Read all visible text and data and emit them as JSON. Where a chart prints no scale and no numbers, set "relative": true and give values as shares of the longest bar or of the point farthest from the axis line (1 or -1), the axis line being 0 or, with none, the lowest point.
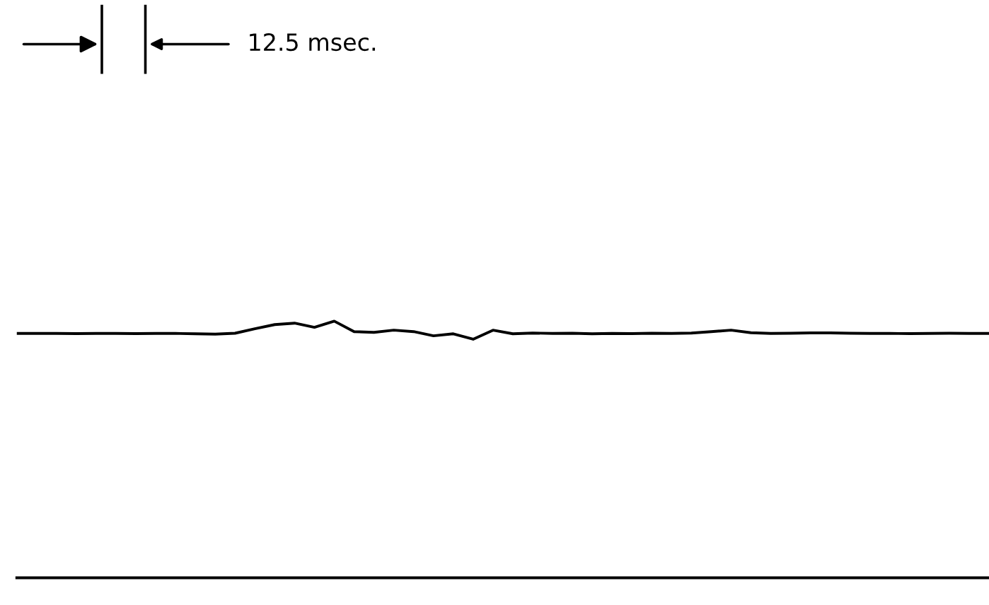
{
  "chart_data": {
    "type": "line",
    "relative": true,
    "color": "#000000",
    "categories": [
      null,
      null,
      null,
      null,
      null,
      null,
      null,
      null,
      null,
      null,
      null,
      null,
      null,
      null,
      null,
      null,
      null,
      null,
      null,
      null,
      null,
      null,
      null,
      null,
      null,
      null,
      null,
      null,
      null,
      null,
      null,
      null,
      null,
      null,
      null,
      null,
      null,
      null,
      null,
      null,
      null,
      null,
      null,
      null,
      null,
      null,
      null,
      null,
      null,
      null
    ],
    "values": [
      0.32,
      0.32,
      0.32,
      0.31,
      0.32,
      0.32,
      0.31,
      0.32,
      0.32,
      0.3,
      0.28,
      0.33,
      0.58,
      0.81,
      0.89,
      0.66,
      1,
      0.42,
      0.38,
      0.5,
      0.42,
      0.19,
      0.3,
      0,
      0.5,
      0.3,
      0.34,
      0.32,
      0.33,
      0.3,
      0.32,
      0.31,
      0.33,
      0.32,
      0.34,
      0.42,
      0.5,
      0.36,
      0.32,
      0.33,
      0.35,
      0.35,
      0.33,
      0.32,
      0.32,
      0.31,
      0.32,
      0.33,
      0.32,
      0.32
    ],
    "annotations": [
      "12.5 msec."
    ]
  }
}
